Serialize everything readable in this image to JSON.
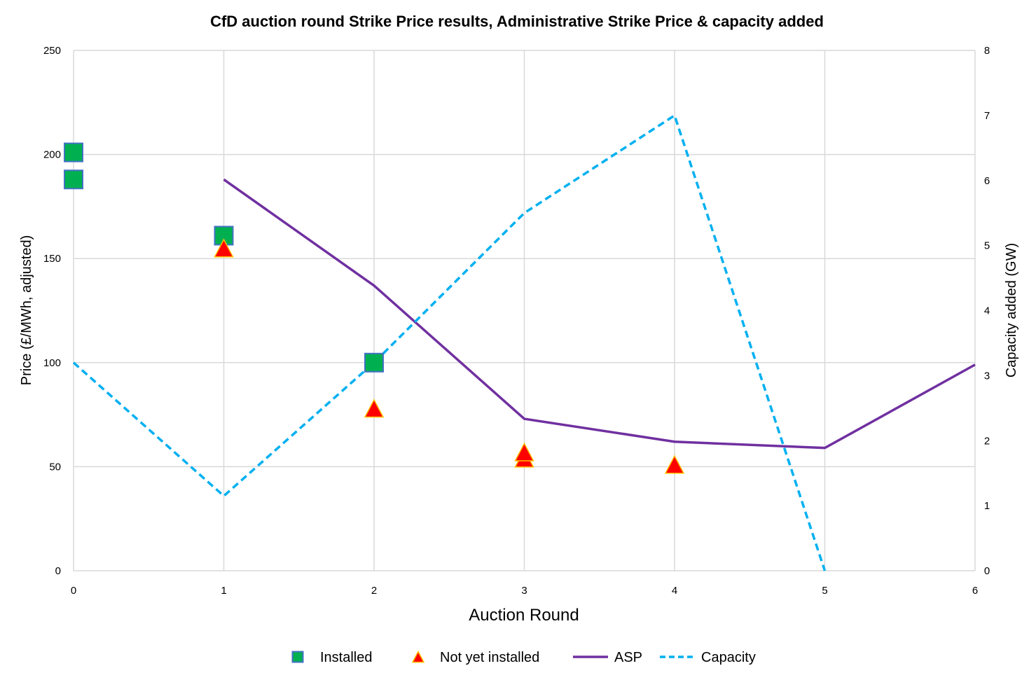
{
  "chart_data": {
    "type": "scatter",
    "title": "CfD auction round Strike Price results, Administrative Strike Price & capacity added",
    "xlabel": "Auction Round",
    "ylabel": "Price (£/MWh, adjusted)",
    "y2label": "Capacity added (GW)",
    "xlim": [
      0,
      6
    ],
    "ylim": [
      0,
      250
    ],
    "y2lim": [
      0,
      8
    ],
    "x_ticks": [
      "0",
      "1",
      "2",
      "3",
      "4",
      "5",
      "6"
    ],
    "y_ticks": [
      "0",
      "50",
      "100",
      "150",
      "200",
      "250"
    ],
    "y2_ticks": [
      "0",
      "1",
      "2",
      "3",
      "4",
      "5",
      "6",
      "7",
      "8"
    ],
    "grid": true,
    "legend_position": "bottom",
    "series": [
      {
        "name": "Installed",
        "kind": "marker-square",
        "axis": "left",
        "color": "#00b050",
        "edge_color": "#4472c4",
        "points": [
          [
            0,
            201
          ],
          [
            0,
            188
          ],
          [
            1,
            161
          ],
          [
            2,
            100
          ]
        ]
      },
      {
        "name": "Not yet installed",
        "kind": "marker-triangle",
        "axis": "left",
        "color": "#ff0000",
        "edge_color": "#ffc000",
        "points": [
          [
            1,
            155
          ],
          [
            2,
            78
          ],
          [
            3,
            54
          ],
          [
            3,
            57
          ],
          [
            4,
            51
          ]
        ]
      },
      {
        "name": "ASP",
        "kind": "line-solid",
        "axis": "left",
        "color": "#7030a0",
        "points": [
          [
            1,
            188
          ],
          [
            2,
            137
          ],
          [
            3,
            73
          ],
          [
            4,
            62
          ],
          [
            5,
            59
          ],
          [
            6,
            99
          ]
        ]
      },
      {
        "name": "Capacity",
        "kind": "line-dashed",
        "axis": "right",
        "color": "#00b0f0",
        "points": [
          [
            0,
            3.2
          ],
          [
            1,
            1.15
          ],
          [
            2,
            3.2
          ],
          [
            3,
            5.5
          ],
          [
            4,
            7.0
          ],
          [
            5,
            0
          ]
        ]
      }
    ]
  }
}
